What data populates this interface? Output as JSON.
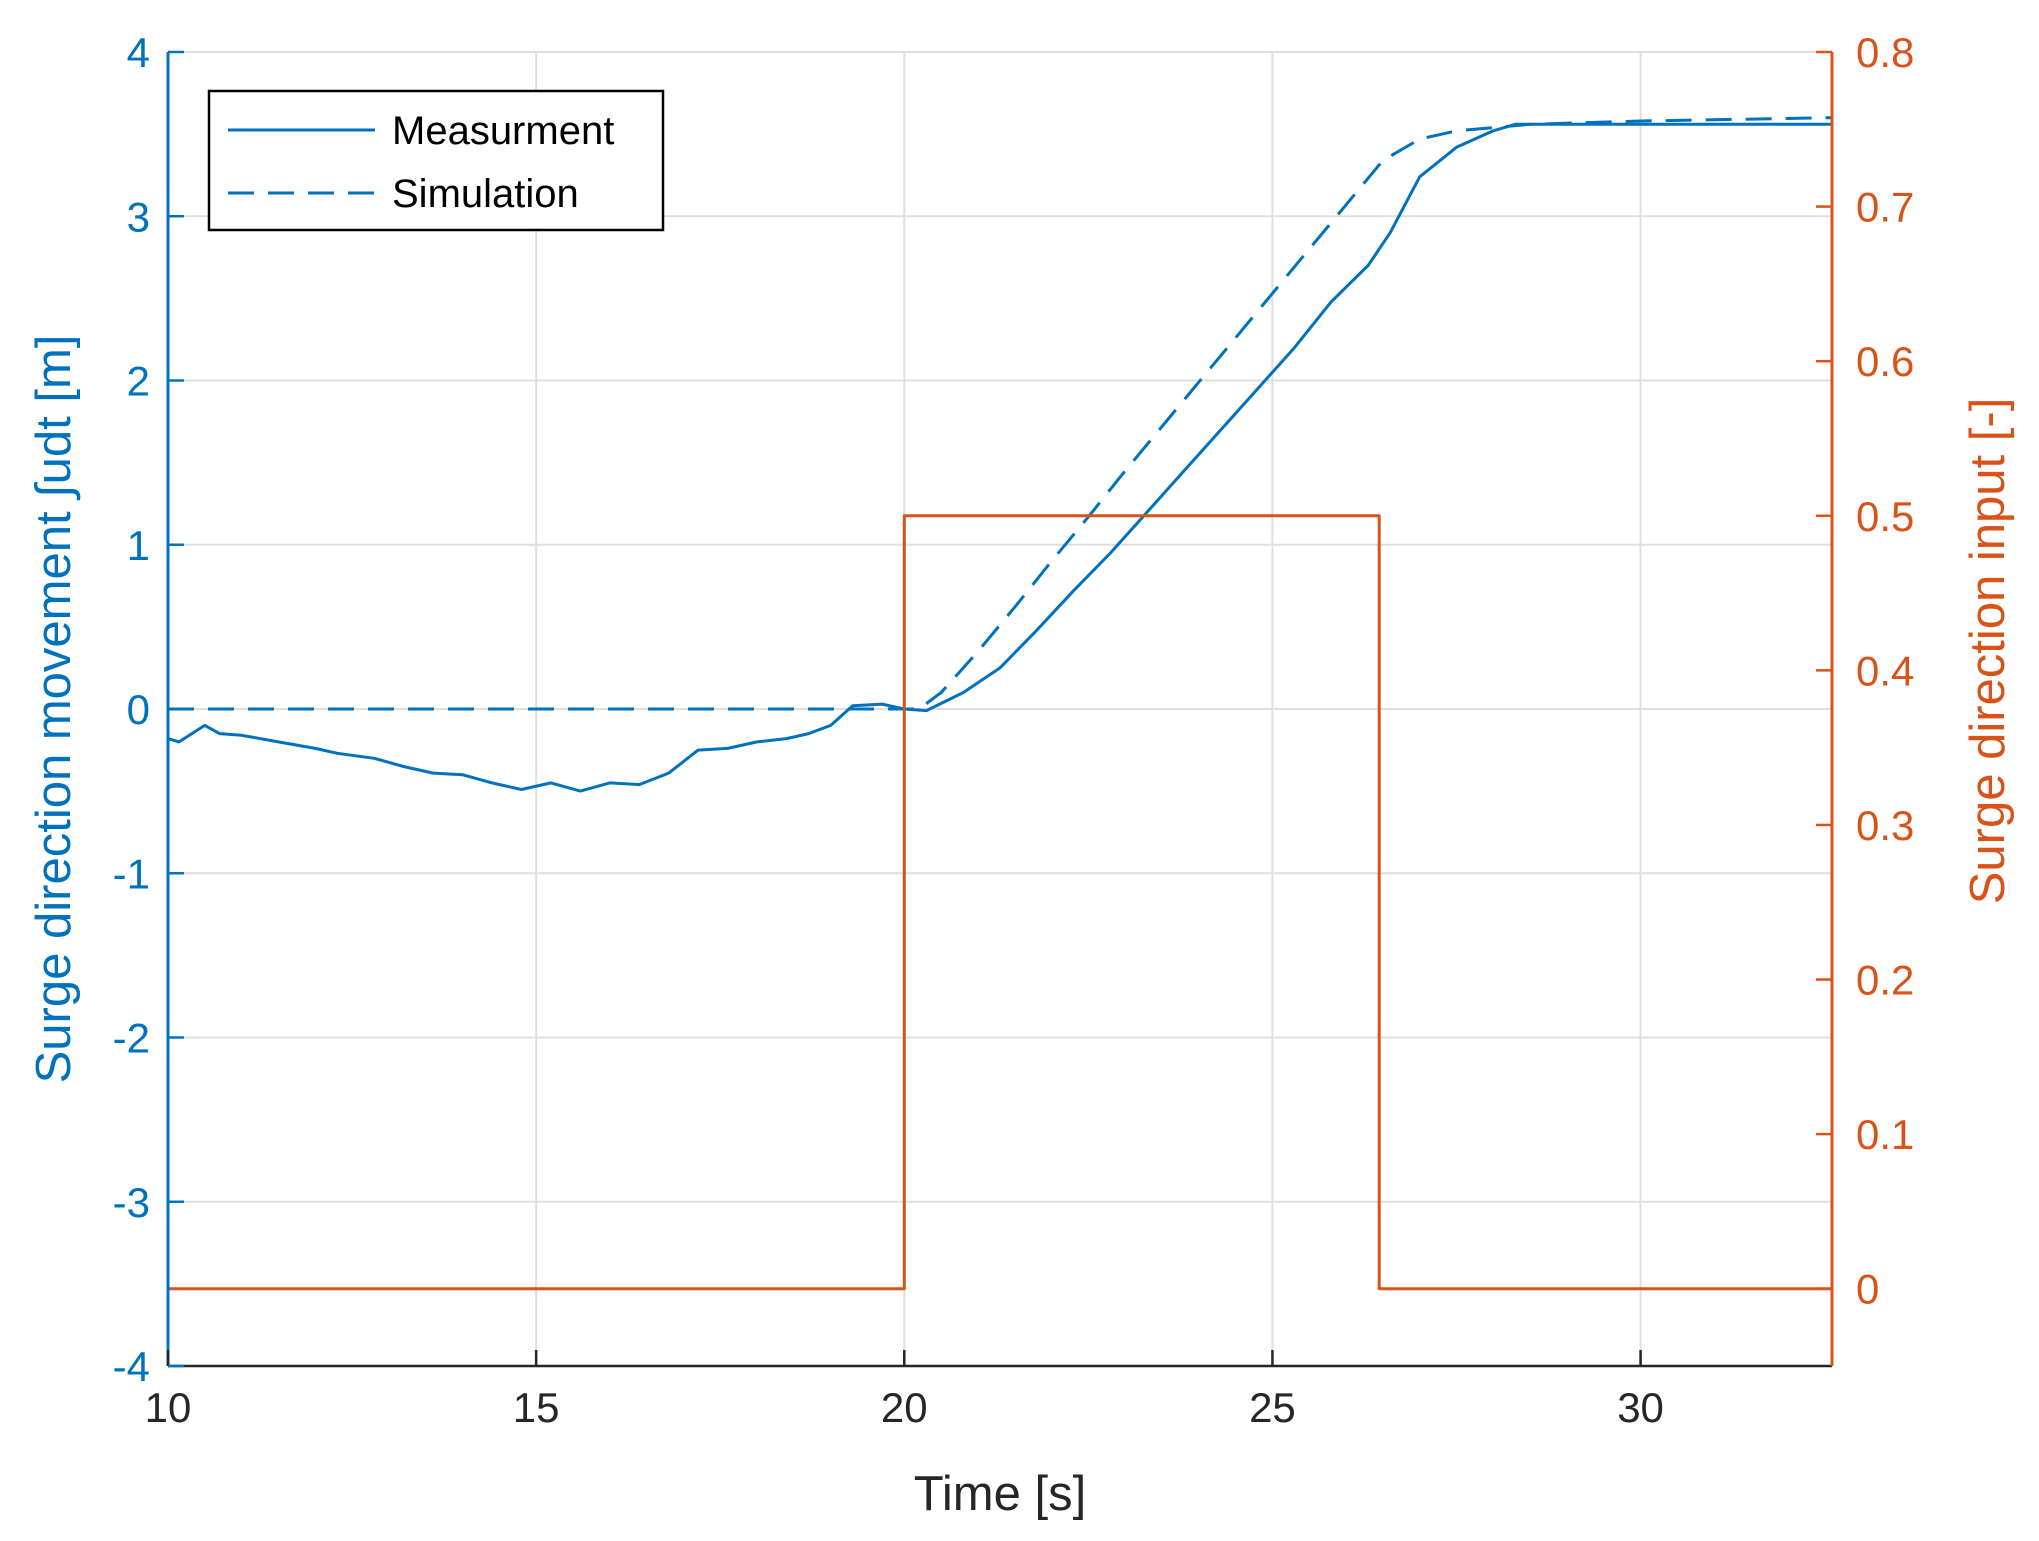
{
  "chart_data": {
    "type": "line",
    "xlabel": "Time [s]",
    "ylabel_left": "Surge direction movement ∫udt [m]",
    "ylabel_right": "Surge direction input [-]",
    "xlim": [
      10,
      32.6
    ],
    "ylim_left": [
      -4,
      4
    ],
    "ylim_right": [
      -0.05,
      0.8
    ],
    "grid": true,
    "legend_position": "top-left",
    "x_ticks": [
      "10",
      "15",
      "20",
      "25",
      "30"
    ],
    "y_left_ticks": [
      "-4",
      "-3",
      "-2",
      "-1",
      "0",
      "1",
      "2",
      "3",
      "4"
    ],
    "y_right_ticks": [
      "0",
      "0.1",
      "0.2",
      "0.3",
      "0.4",
      "0.5",
      "0.6",
      "0.7",
      "0.8"
    ],
    "colors": {
      "left_axis": "#0072BD",
      "right_axis": "#D95319",
      "grid": "#DFDFDF"
    },
    "legend": [
      "Measurment",
      "Simulation"
    ],
    "series": [
      {
        "name": "Measurment",
        "axis": "left",
        "style": "solid",
        "x": [
          10.0,
          10.15,
          10.5,
          10.7,
          11.0,
          11.5,
          12.0,
          12.3,
          12.8,
          13.2,
          13.6,
          14.0,
          14.4,
          14.8,
          15.2,
          15.6,
          16.0,
          16.4,
          16.8,
          17.2,
          17.6,
          18.0,
          18.4,
          18.7,
          19.0,
          19.3,
          19.7,
          20.0,
          20.3,
          20.8,
          21.3,
          21.8,
          22.3,
          22.8,
          23.3,
          23.8,
          24.3,
          24.8,
          25.3,
          25.8,
          26.3,
          26.6,
          27.0,
          27.5,
          28.0,
          28.3,
          28.7,
          29.5,
          30.5,
          31.5,
          32.6
        ],
        "y": [
          -0.18,
          -0.2,
          -0.1,
          -0.15,
          -0.16,
          -0.2,
          -0.24,
          -0.27,
          -0.3,
          -0.35,
          -0.39,
          -0.4,
          -0.45,
          -0.49,
          -0.45,
          -0.5,
          -0.45,
          -0.46,
          -0.39,
          -0.25,
          -0.24,
          -0.2,
          -0.18,
          -0.15,
          -0.1,
          0.02,
          0.03,
          0.0,
          -0.01,
          0.1,
          0.25,
          0.48,
          0.72,
          0.95,
          1.2,
          1.45,
          1.7,
          1.95,
          2.2,
          2.48,
          2.7,
          2.9,
          3.24,
          3.42,
          3.52,
          3.56,
          3.56,
          3.56,
          3.56,
          3.56,
          3.56
        ]
      },
      {
        "name": "Simulation",
        "axis": "left",
        "style": "dashed",
        "x": [
          10.0,
          20.2,
          20.5,
          21.0,
          21.5,
          22.0,
          22.5,
          23.0,
          23.5,
          24.0,
          24.5,
          25.0,
          25.5,
          26.0,
          26.5,
          27.0,
          27.5,
          28.0,
          28.5,
          30.0,
          32.6
        ],
        "y": [
          0.0,
          0.0,
          0.1,
          0.35,
          0.62,
          0.9,
          1.17,
          1.45,
          1.72,
          1.99,
          2.26,
          2.53,
          2.8,
          3.07,
          3.34,
          3.47,
          3.52,
          3.54,
          3.56,
          3.58,
          3.6
        ]
      },
      {
        "name": "",
        "axis": "right",
        "style": "solid",
        "x": [
          10.0,
          20.0,
          20.0,
          26.45,
          26.45,
          32.6
        ],
        "y": [
          0.0,
          0.0,
          0.5,
          0.5,
          0.0,
          0.0
        ]
      }
    ]
  }
}
